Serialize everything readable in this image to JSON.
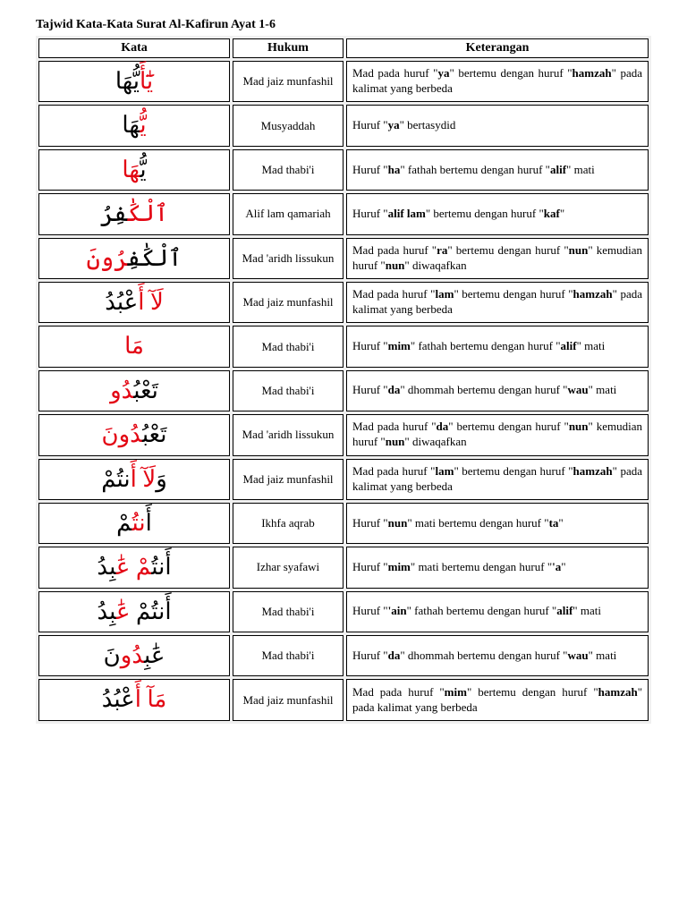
{
  "title": "Tajwid Kata-Kata Surat Al-Kafirun Ayat 1-6",
  "headers": {
    "kata": "Kata",
    "hukum": "Hukum",
    "ket": "Keterangan"
  },
  "rows": [
    {
      "kata": "<span class='red'>يَٰٓأَ</span><span class='blk'>يُّهَا</span>",
      "hukum": "Mad jaiz munfashil",
      "ket": "Mad pada huruf \"<b>ya</b>\" bertemu dengan huruf \"<b>hamzah</b>\" pada kalimat yang berbeda"
    },
    {
      "kata": "<span class='red'>يُّ</span><span class='blk'>هَا</span>",
      "hukum": "Musyaddah",
      "ket": "Huruf \"<b>ya</b>\" bertasydid"
    },
    {
      "kata": "<span class='blk'>يُّ</span><span class='red'>هَا</span>",
      "hukum": "Mad thabi'i",
      "ket": "Huruf \"<b>ha</b>\" fathah bertemu dengan huruf \"<b>alif</b>\" mati"
    },
    {
      "kata": "<span class='red'>ٱلْكَ</span><span class='blk'>ٰفِرُ</span>",
      "hukum": "Alif lam qamariah",
      "ket": "Huruf \"<b>alif lam</b>\" bertemu dengan huruf \"<b>kaf</b>\""
    },
    {
      "kata": "<span class='blk'>ٱلْكَٰفِ</span><span class='red'>رُونَ</span>",
      "hukum": "Mad 'aridh lissukun",
      "ket": "Mad pada huruf \"<b>ra</b>\" bertemu dengan huruf \"<b>nun</b>\" kemudian huruf \"<b>nun</b>\" diwaqafkan"
    },
    {
      "kata": "<span class='red'>لَآ أَ</span><span class='blk'>عْبُدُ</span>",
      "hukum": "Mad jaiz munfashil",
      "ket": "Mad pada huruf \"<b>lam</b>\" bertemu dengan huruf \"<b>hamzah</b>\" pada kalimat yang berbeda"
    },
    {
      "kata": "<span class='red'>مَا</span>",
      "hukum": "Mad thabi'i",
      "ket": "Huruf \"<b>mim</b>\" fathah bertemu dengan huruf \"<b>alif</b>\" mati"
    },
    {
      "kata": "<span class='blk'>تَعْبُ</span><span class='red'>دُو</span>",
      "hukum": "Mad thabi'i",
      "ket": "Huruf \"<b>da</b>\" dhommah bertemu dengan huruf \"<b>wau</b>\" mati"
    },
    {
      "kata": "<span class='blk'>تَعْبُ</span><span class='red'>دُونَ</span>",
      "hukum": "Mad 'aridh lissukun",
      "ket": "Mad pada huruf \"<b>da</b>\" bertemu dengan huruf \"<b>nun</b>\" kemudian huruf \"<b>nun</b>\" diwaqafkan"
    },
    {
      "kata": "<span class='blk'>وَ</span><span class='red'>لَآ أَ</span><span class='blk'>نتُمْ</span>",
      "hukum": "Mad jaiz munfashil",
      "ket": "Mad pada huruf \"<b>lam</b>\" bertemu dengan huruf \"<b>hamzah</b>\" pada kalimat yang berbeda"
    },
    {
      "kata": "<span class='blk'>أَ</span><span class='red'>نتُ</span><span class='blk'>مْ</span>",
      "hukum": "Ikhfa aqrab",
      "ket": "Huruf \"<b>nun</b>\" mati bertemu dengan huruf \"<b>ta</b>\""
    },
    {
      "kata": "<span class='blk'>أَنتُ</span><span class='red'>مْ عَ</span><span class='blk'>ٰبِدُ</span>",
      "hukum": "Izhar syafawi",
      "ket": "Huruf \"<b>mim</b>\" mati bertemu dengan huruf \"<b>'a</b>\""
    },
    {
      "kata": "<span class='blk'>أَنتُمْ </span><span class='red'>عَٰ</span><span class='blk'>بِدُ</span>",
      "hukum": "Mad thabi'i",
      "ket": "Huruf \"<b>'ain</b>\" fathah bertemu dengan huruf \"<b>alif</b>\" mati"
    },
    {
      "kata": "<span class='blk'>عَٰبِ</span><span class='red'>دُو</span><span class='blk'>نَ</span>",
      "hukum": "Mad thabi'i",
      "ket": "Huruf \"<b>da</b>\" dhommah bertemu dengan huruf \"<b>wau</b>\" mati"
    },
    {
      "kata": "<span class='red'>مَآ أَ</span><span class='blk'>عْبُدُ</span>",
      "hukum": "Mad jaiz munfashil",
      "ket": "Mad pada huruf \"<b>mim</b>\" bertemu dengan huruf \"<b>hamzah</b>\" pada kalimat yang berbeda"
    }
  ]
}
